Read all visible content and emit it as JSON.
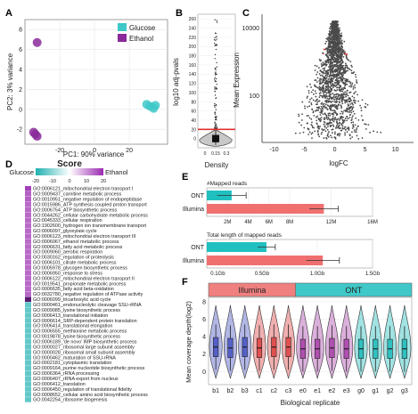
{
  "chart_data": [
    {
      "panel": "A",
      "type": "scatter",
      "xlabel": "PC1: 90% variance",
      "ylabel": "PC2: 3% variance",
      "xlim": [
        -40,
        42
      ],
      "ylim": [
        -3.5,
        9
      ],
      "x_ticks": [
        -20,
        0,
        20
      ],
      "y_ticks": [
        -2,
        0,
        2,
        4,
        6,
        8
      ],
      "legend": {
        "position": "top-right",
        "entries": [
          {
            "name": "Glucose",
            "color": "#3ec8c8"
          },
          {
            "name": "Ethanol",
            "color": "#8a2a9a"
          }
        ]
      },
      "series": [
        {
          "name": "Glucose",
          "color": "#3ec8c8",
          "points": [
            [
              30,
              0.5
            ],
            [
              32,
              0.3
            ],
            [
              34,
              0.1
            ],
            [
              35,
              0.4
            ]
          ]
        },
        {
          "name": "Ethanol",
          "color": "#8a2a9a",
          "points": [
            [
              -33,
              6.7
            ],
            [
              -35,
              -2.3
            ],
            [
              -33,
              -2.7
            ],
            [
              -34,
              -2.5
            ]
          ]
        }
      ]
    },
    {
      "panel": "B",
      "type": "violin",
      "xlabel": "Density",
      "ylabel": "log10 adj-pvals",
      "y_ticks": [
        0,
        20,
        40,
        60,
        80,
        100,
        120,
        140,
        160,
        180,
        200,
        220,
        240,
        260
      ],
      "x_ticks": [
        0,
        0.15,
        0.3
      ],
      "ylim": [
        -20,
        270
      ],
      "threshold": 20,
      "threshold_color": "#e03030"
    },
    {
      "panel": "C",
      "type": "scatter",
      "xlabel": "logFC",
      "ylabel": "Mean Expression",
      "x_ticks": [
        -10,
        -5,
        0,
        5,
        10
      ],
      "xlim": [
        -12,
        13
      ],
      "y_ticks": [
        "100",
        "10000"
      ],
      "y_scale": "log"
    },
    {
      "panel": "D",
      "type": "heatmap",
      "title": "Score",
      "colorbar": {
        "low_label": "Glucose",
        "high_label": "Ethanol",
        "ticks": [
          -20,
          -10,
          0,
          10,
          20
        ],
        "low_color": "#20b0b0",
        "high_color": "#9a2ab0"
      },
      "rows": [
        {
          "label": "GO:0006121_mitochondrial electron transport I",
          "score": 18
        },
        {
          "label": "GO:0009437_carnitine metabolic process",
          "score": 15
        },
        {
          "label": "GO:0010951_negative regulation of endopeptidase",
          "score": 15
        },
        {
          "label": "GO:0015986_ATP synthesis coupled proton transport",
          "score": 14
        },
        {
          "label": "GO:0006754_ATP biosynthetic process",
          "score": 14
        },
        {
          "label": "GO:0044262_cellular carbohydrate metabolic process",
          "score": 14
        },
        {
          "label": "GO:0045333_cellular respiration",
          "score": 14
        },
        {
          "label": "GO:1902600_hydrogen ion transmembrane transport",
          "score": 14
        },
        {
          "label": "GO:0006097_glyoxylate cycle",
          "score": 14
        },
        {
          "label": "GO:0006123_mitochondrial electron transport III",
          "score": 14
        },
        {
          "label": "GO:0006067_ethanol metabolic process",
          "score": 14
        },
        {
          "label": "GO:0006631_fatty acid metabolic process",
          "score": 14
        },
        {
          "label": "GO:0009060_aerobic respiration",
          "score": 14
        },
        {
          "label": "GO:0030162_regulation of proteolysis",
          "score": 14
        },
        {
          "label": "GO:0006101_citrate metabolic process",
          "score": 14
        },
        {
          "label": "GO:0005978_glycogen biosynthetic process",
          "score": 14
        },
        {
          "label": "GO:0006950_response to stress",
          "score": 14
        },
        {
          "label": "GO:0006122_mitochondrial electron transport II",
          "score": 14
        },
        {
          "label": "GO:0019541_propionate metabolic process",
          "score": 14
        },
        {
          "label": "GO:0006635_fatty acid beta-oxidation",
          "score": 14
        },
        {
          "label": "GO:0032780_negative regulation of ATPase activity",
          "score": 14
        },
        {
          "label": "GO:0006099_tricarboxylic acid cycle",
          "score": 20
        },
        {
          "label": "GO:0000461_endonucleolytic cleavage SSU-rRNA",
          "score": -14
        },
        {
          "label": "GO:0009085_lysine biosynthetic process",
          "score": -14
        },
        {
          "label": "GO:0006413_translational initiation",
          "score": -14
        },
        {
          "label": "GO:0006614_SRP-dependent protein translation",
          "score": -14
        },
        {
          "label": "GO:0006414_translational elongation",
          "score": -14
        },
        {
          "label": "GO:0006555_methionine metabolic process",
          "score": -14
        },
        {
          "label": "GO:0019878_lysine biosynthetic process",
          "score": -14
        },
        {
          "label": "GO:0006189_'de novo' IMP biosynthetic process",
          "score": -14
        },
        {
          "label": "GO:0000027_ribosomal large subunit assembly",
          "score": -14
        },
        {
          "label": "GO:0000028_ribosomal small subunit assembly",
          "score": -14
        },
        {
          "label": "GO:0000462_maturation of SSU-rRNA",
          "score": -14
        },
        {
          "label": "GO:0002181_cytoplasmic translation",
          "score": -14
        },
        {
          "label": "GO:0009164_purine nucleotide biosynthetic process",
          "score": -14
        },
        {
          "label": "GO:0006364_rRNA processing",
          "score": -14
        },
        {
          "label": "GO:0006407_rRNA export from nucleus",
          "score": -14
        },
        {
          "label": "GO:0006412_translation",
          "score": -14
        },
        {
          "label": "GO:0006450_regulation of translational fidelity",
          "score": -14
        },
        {
          "label": "GO:0008652_cellular amino acid biosynthetic process",
          "score": -14
        },
        {
          "label": "GO:0042254_ribosome biogenesis",
          "score": -14
        }
      ]
    },
    {
      "panel": "E",
      "type": "bar",
      "orientation": "horizontal",
      "subplots": [
        {
          "title": "#Mapped reads",
          "categories": [
            "ONT",
            "Illumina"
          ],
          "values": [
            2400000,
            11300000
          ],
          "errors": [
            1400000,
            1400000
          ],
          "colors": [
            "#20c0c0",
            "#f07070"
          ],
          "x_ticks": [
            "2M",
            "4M",
            "6M",
            "8M",
            "12M",
            "16M"
          ],
          "xlim": [
            0,
            16000000
          ]
        },
        {
          "title": "Total length of mapped reads",
          "categories": [
            "ONT",
            "Illumina"
          ],
          "values": [
            540000000,
            1050000000
          ],
          "errors": [
            80000000,
            150000000
          ],
          "colors": [
            "#20c0c0",
            "#f07070"
          ],
          "x_ticks": [
            "0.1Gb",
            "0.5Gb",
            "1.0Gb",
            "1.5Gb"
          ],
          "xlim": [
            0,
            1500000000
          ]
        }
      ]
    },
    {
      "panel": "F",
      "type": "violin",
      "xlabel": "Biological replicate",
      "ylabel": "Mean coverage depth(log2)",
      "y_ticks": [
        0,
        2,
        4,
        6,
        8
      ],
      "ylim": [
        -1.5,
        8.5
      ],
      "groups": [
        {
          "name": "Illumina",
          "header_color": "#f08080",
          "categories": [
            "b1",
            "b2",
            "b3",
            "c1",
            "c2",
            "c3"
          ]
        },
        {
          "name": "ONT",
          "header_color": "#40c8c8",
          "categories": [
            "e0",
            "e1",
            "e2",
            "e3",
            "g0",
            "g1",
            "g2",
            "g3"
          ]
        }
      ],
      "medians": [
        2.8,
        2.7,
        2.8,
        2.7,
        2.8,
        2.8,
        2.6,
        2.6,
        2.7,
        2.6,
        2.6,
        2.6,
        2.6,
        2.6
      ],
      "colors": [
        "#5560c8",
        "#5560c8",
        "#5560c8",
        "#e05050",
        "#e05050",
        "#e05050",
        "#b050b0",
        "#b050b0",
        "#b050b0",
        "#b050b0",
        "#30c0c0",
        "#30c0c0",
        "#30c0c0",
        "#30c0c0"
      ]
    }
  ]
}
